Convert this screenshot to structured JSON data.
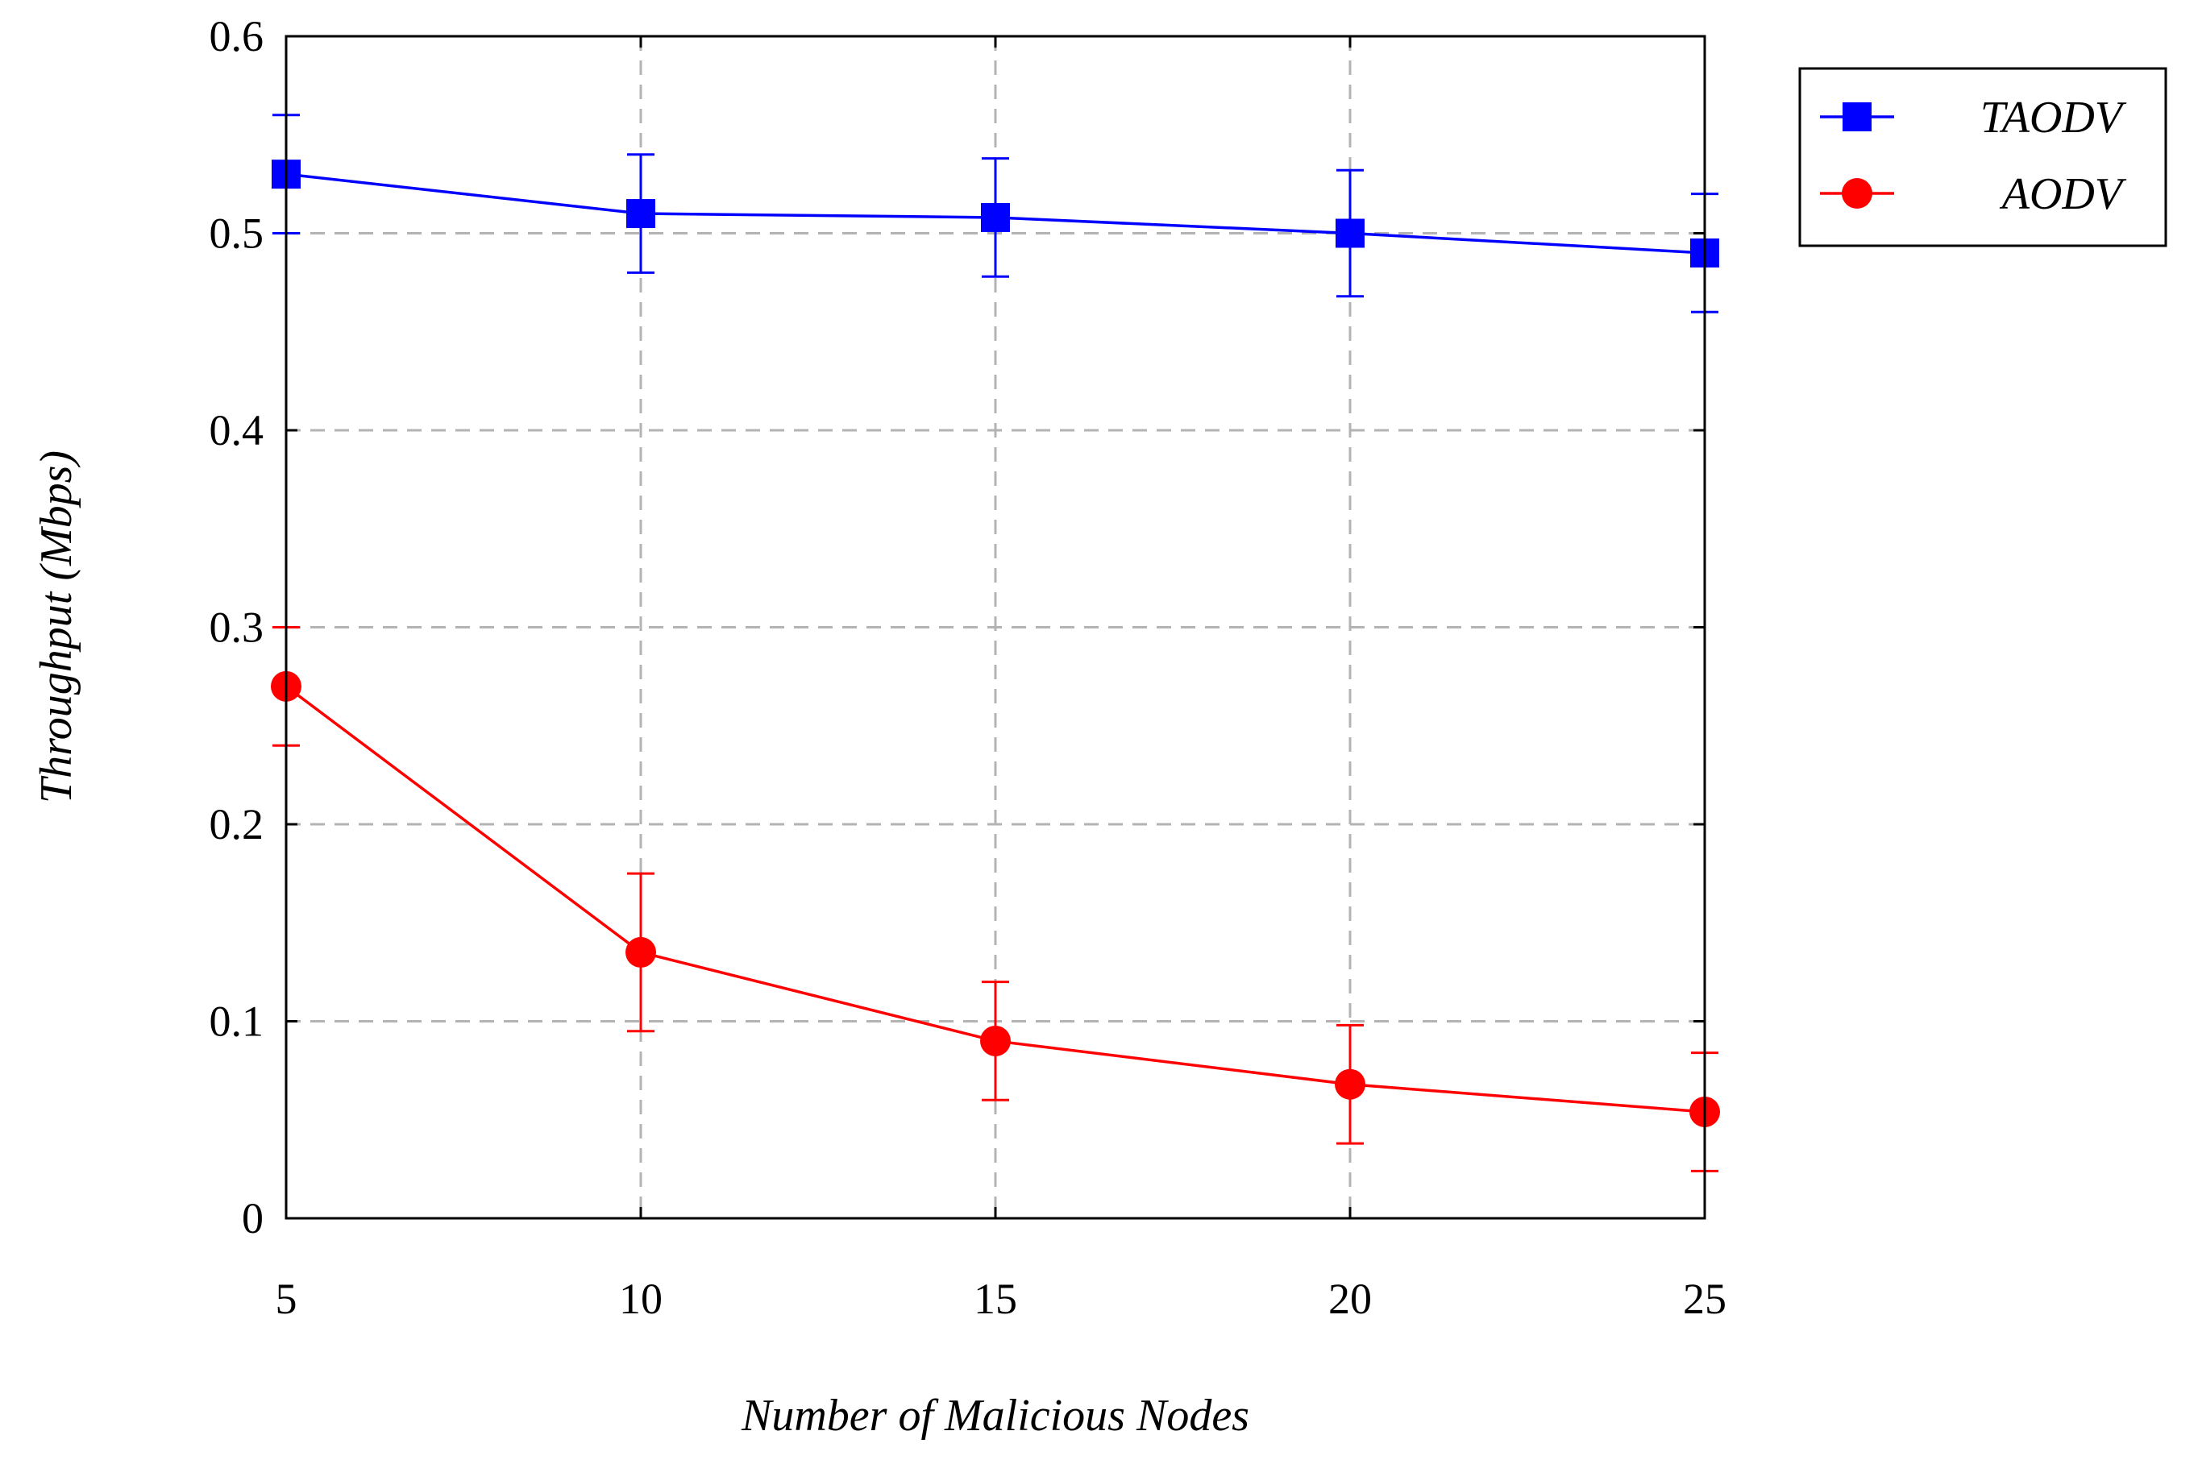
{
  "chart_data": {
    "type": "line",
    "title": "",
    "xlabel": "Number of Malicious Nodes",
    "ylabel": "Throughput (Mbps)",
    "x": [
      5,
      10,
      15,
      20,
      25
    ],
    "x_tick_labels": [
      "5",
      "10",
      "15",
      "20",
      "25"
    ],
    "y_tick_labels": [
      "0",
      "0.1",
      "0.2",
      "0.3",
      "0.4",
      "0.5",
      "0.6"
    ],
    "xlim": [
      5,
      25
    ],
    "ylim": [
      0,
      0.6
    ],
    "grid": true,
    "legend_position": "outside-top-right",
    "series": [
      {
        "name": "TAODV",
        "color": "#0000ff",
        "marker": "square",
        "values": [
          0.53,
          0.51,
          0.508,
          0.5,
          0.49
        ],
        "errors": [
          0.03,
          0.03,
          0.03,
          0.032,
          0.03
        ]
      },
      {
        "name": "AODV",
        "color": "#ff0000",
        "marker": "circle",
        "values": [
          0.27,
          0.135,
          0.09,
          0.068,
          0.054
        ],
        "errors": [
          0.03,
          0.04,
          0.03,
          0.03,
          0.03
        ]
      }
    ]
  }
}
